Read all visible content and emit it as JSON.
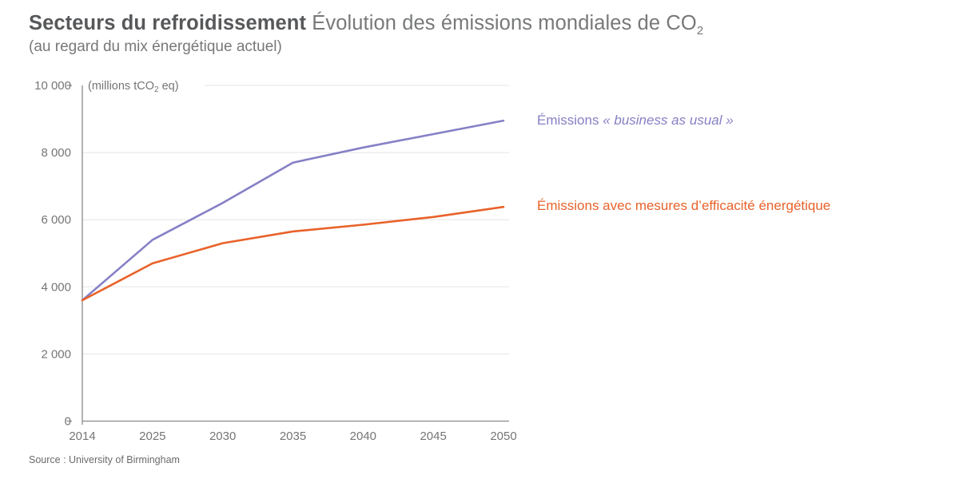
{
  "header": {
    "title_bold": "Secteurs du refroidissement",
    "title_regular": " Évolution des émissions mondiales de CO",
    "title_subscript": "2",
    "subtitle": "(au regard du mix énergétique actuel)"
  },
  "legend": {
    "bau_prefix": "Émissions ",
    "bau_italic": "« business as usual »",
    "efficiency_label": "Émissions avec mesures d’efficacité énergétique"
  },
  "source": "Source : University of Birmingham",
  "chart_data": {
    "type": "line",
    "unit_label": "(millions tCO₂ eq)",
    "unit_label_parts": [
      "(millions tCO",
      "2",
      " eq)"
    ],
    "categories": [
      "2014",
      "2025",
      "2030",
      "2035",
      "2040",
      "2045",
      "2050"
    ],
    "series": [
      {
        "name": "Émissions « business as usual »",
        "color": "#8680c6",
        "values": [
          3600,
          5400,
          6500,
          7700,
          8150,
          8550,
          8950
        ]
      },
      {
        "name": "Émissions avec mesures d’efficacité énergétique",
        "color": "#e8622a",
        "values": [
          3600,
          4700,
          5300,
          5650,
          5850,
          6080,
          6380
        ]
      }
    ],
    "ylim": [
      0,
      10000
    ],
    "yticks": [
      0,
      2000,
      4000,
      6000,
      8000,
      10000
    ],
    "ytick_labels": [
      "0",
      "2 000",
      "4 000",
      "6 000",
      "8 000",
      "10 000"
    ],
    "grid": "horizontal",
    "legend_position": "right",
    "axis_color": "#8a8a8a",
    "grid_color": "#e5e5e5",
    "tick_text_color": "#757575"
  }
}
